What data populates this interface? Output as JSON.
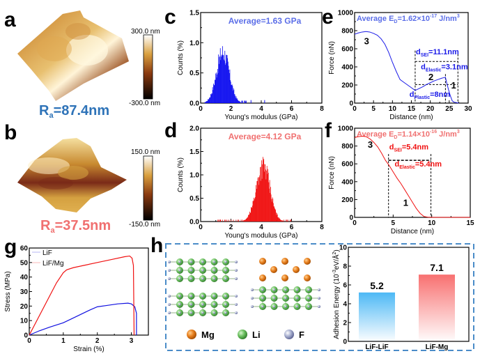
{
  "panels": {
    "a": {
      "label": "a",
      "ra_text": "R",
      "ra_sub": "a",
      "ra_value": "=87.4nm",
      "ra_color": "#2e73b8",
      "scale_max": "300.0 nm",
      "scale_min": "-300.0 nm"
    },
    "b": {
      "label": "b",
      "ra_text": "R",
      "ra_sub": "a",
      "ra_value": "=37.5nm",
      "ra_color": "#f07070",
      "scale_max": "150.0 nm",
      "scale_min": "-150.0 nm"
    },
    "c": {
      "label": "c"
    },
    "d": {
      "label": "d"
    },
    "e": {
      "label": "e"
    },
    "f": {
      "label": "f"
    },
    "g": {
      "label": "g"
    },
    "h": {
      "label": "h"
    }
  },
  "legend_atoms": [
    {
      "name": "Mg",
      "color": "#e8801f"
    },
    {
      "name": "Li",
      "color": "#5cb85c"
    },
    {
      "name": "F",
      "color": "#9aa3c8"
    }
  ],
  "chart_data": [
    {
      "id": "c",
      "type": "bar",
      "title": "Average=1.63 GPa",
      "title_color": "#5b6ee8",
      "color": "#1010f0",
      "xlabel": "Young's modulus (GPa)",
      "ylabel": "Counts (%)",
      "xlim": [
        0,
        8
      ],
      "ylim": [
        0,
        1.5
      ],
      "xticks": [
        0,
        2,
        4,
        6,
        8
      ],
      "yticks": [
        0.0,
        0.5,
        1.0,
        1.5
      ],
      "ytick_labels": [
        "0.0",
        "0.5",
        "1.0",
        "1.5"
      ],
      "distribution": {
        "mean": 1.63,
        "peak": 0.93,
        "peak_x": 1.45,
        "range": [
          0.2,
          3.0
        ],
        "outliers": [
          3.3,
          4.2
        ]
      }
    },
    {
      "id": "d",
      "type": "bar",
      "title": "Average=4.12 GPa",
      "title_color": "#f07070",
      "color": "#f01010",
      "xlabel": "Young's modulus (GPa)",
      "ylabel": "Counts (%)",
      "xlim": [
        0,
        8
      ],
      "ylim": [
        0,
        2.0
      ],
      "xticks": [
        0,
        2,
        4,
        6,
        8
      ],
      "yticks": [
        0.0,
        0.5,
        1.0,
        1.5,
        2.0
      ],
      "ytick_labels": [
        "0.0",
        "0.5",
        "1.0",
        "1.5",
        "2.0"
      ],
      "distribution": {
        "mean": 4.12,
        "peak": 1.32,
        "peak_x": 4.1,
        "range": [
          1.0,
          6.0
        ]
      }
    },
    {
      "id": "e",
      "type": "line",
      "title": "Average E",
      "title_sub": "D",
      "title_rest": "=1.62×10",
      "title_sup": "-17",
      "title_unit": " J/nm",
      "title_unit_sup": "3",
      "title_color": "#5b6ee8",
      "color": "#1a1ae8",
      "xlabel": "Distance (nm)",
      "ylabel": "Force (nN)",
      "xlim": [
        0,
        30
      ],
      "ylim": [
        0,
        1000
      ],
      "xticks": [
        0,
        5,
        10,
        15,
        20,
        25,
        30
      ],
      "yticks": [
        0,
        200,
        400,
        600,
        800,
        1000
      ],
      "x": [
        0,
        1,
        2,
        3,
        4,
        5,
        6,
        7,
        8,
        9,
        10,
        11,
        12,
        13,
        14,
        15,
        16,
        17,
        18,
        19,
        20,
        21,
        22,
        23,
        24,
        24.3,
        24.8,
        25.3,
        25.8,
        26.3,
        27,
        27.5
      ],
      "y": [
        760,
        775,
        785,
        790,
        785,
        770,
        750,
        710,
        650,
        560,
        450,
        350,
        260,
        230,
        200,
        170,
        140,
        160,
        180,
        205,
        225,
        245,
        260,
        275,
        285,
        230,
        150,
        80,
        25,
        10,
        5,
        0
      ],
      "annotations": [
        {
          "text": "3",
          "x": 2.5,
          "y": 650
        },
        {
          "text": "2",
          "x": 19.5,
          "y": 255
        },
        {
          "text": "1",
          "x": 25.5,
          "y": 160
        },
        {
          "text": "d",
          "sub": "SEI",
          "rest": "=11.1nm",
          "x": 16.2,
          "y": 540
        },
        {
          "text": "d",
          "sub": "Elastic",
          "rest": "=3.1nm",
          "x": 17.5,
          "y": 375
        },
        {
          "text": "d",
          "sub": "Plastic",
          "rest": "=8nm",
          "x": 14.5,
          "y": 70
        }
      ]
    },
    {
      "id": "f",
      "type": "line",
      "title": "Average E",
      "title_sub": "D",
      "title_rest": "=1.14×10",
      "title_sup": "-16",
      "title_unit": " J/nm",
      "title_unit_sup": "3",
      "title_color": "#f07070",
      "color": "#f01010",
      "xlabel": "Distance (nm)",
      "ylabel": "Force (nN)",
      "xlim": [
        0,
        15
      ],
      "ylim": [
        0,
        1000
      ],
      "xticks": [
        0,
        5,
        10,
        15
      ],
      "yticks": [
        0,
        200,
        400,
        600,
        800,
        1000
      ],
      "x": [
        0,
        0.5,
        1,
        1.5,
        2,
        2.5,
        3,
        3.5,
        4,
        4.5,
        5,
        5.5,
        6,
        6.5,
        7,
        7.5,
        8,
        8.5,
        9,
        9.5,
        10,
        15
      ],
      "y": [
        895,
        905,
        910,
        905,
        880,
        840,
        790,
        720,
        640,
        580,
        510,
        440,
        380,
        310,
        240,
        170,
        100,
        45,
        10,
        2,
        0,
        0
      ],
      "annotations": [
        {
          "text": "3",
          "x": 1.7,
          "y": 780
        },
        {
          "text": "1",
          "x": 6.3,
          "y": 130
        },
        {
          "text": "d",
          "sub": "SEI",
          "rest": "=5.4nm",
          "x": 4.5,
          "y": 760
        },
        {
          "text": "d",
          "sub": "Elastic",
          "rest": "=5.4nm",
          "x": 5.2,
          "y": 570
        }
      ]
    },
    {
      "id": "g",
      "type": "line",
      "xlabel": "Strain (%)",
      "ylabel": "Stress (MPa)",
      "xlim": [
        0,
        3.5
      ],
      "ylim": [
        0,
        60
      ],
      "xticks": [
        0,
        1,
        2,
        3
      ],
      "yticks": [
        0,
        10,
        20,
        30,
        40,
        50,
        60
      ],
      "legend": "top-left",
      "series": [
        {
          "name": "LiF",
          "color": "#1010e0",
          "x": [
            0,
            0.3,
            0.6,
            1.0,
            1.4,
            1.8,
            2.0,
            2.3,
            2.6,
            2.9,
            3.0,
            3.1,
            3.15,
            3.15
          ],
          "y": [
            0,
            3,
            5.5,
            8.5,
            13,
            17.5,
            19.5,
            20.5,
            21.5,
            22,
            21.5,
            19.5,
            15,
            0
          ]
        },
        {
          "name": "LiF/Mg",
          "color": "#f01010",
          "x": [
            0,
            0.2,
            0.4,
            0.6,
            0.8,
            1.0,
            1.1,
            1.3,
            1.6,
            2.0,
            2.4,
            2.8,
            2.95,
            3.02,
            3.06,
            3.07,
            3.08
          ],
          "y": [
            0,
            9,
            18,
            27,
            36,
            43,
            45,
            46.5,
            48,
            50,
            52,
            54,
            54.5,
            53,
            48,
            25,
            0
          ]
        }
      ]
    },
    {
      "id": "h",
      "type": "bar",
      "categories": [
        "LiF-LiF",
        "LiF-Mg"
      ],
      "values": [
        5.2,
        7.1
      ],
      "data_labels": [
        "5.2",
        "7.1"
      ],
      "colors": [
        "#4db8f5",
        "#f87070"
      ],
      "ylabel": "Adhesion Energy (10",
      "ylabel_sup": "-3",
      "ylabel_rest": "eV/Å",
      "ylabel_sup2": "2",
      "ylabel_end": ")",
      "ylim": [
        0,
        10
      ],
      "yticks": [
        0,
        2,
        4,
        6,
        8,
        10
      ]
    }
  ]
}
